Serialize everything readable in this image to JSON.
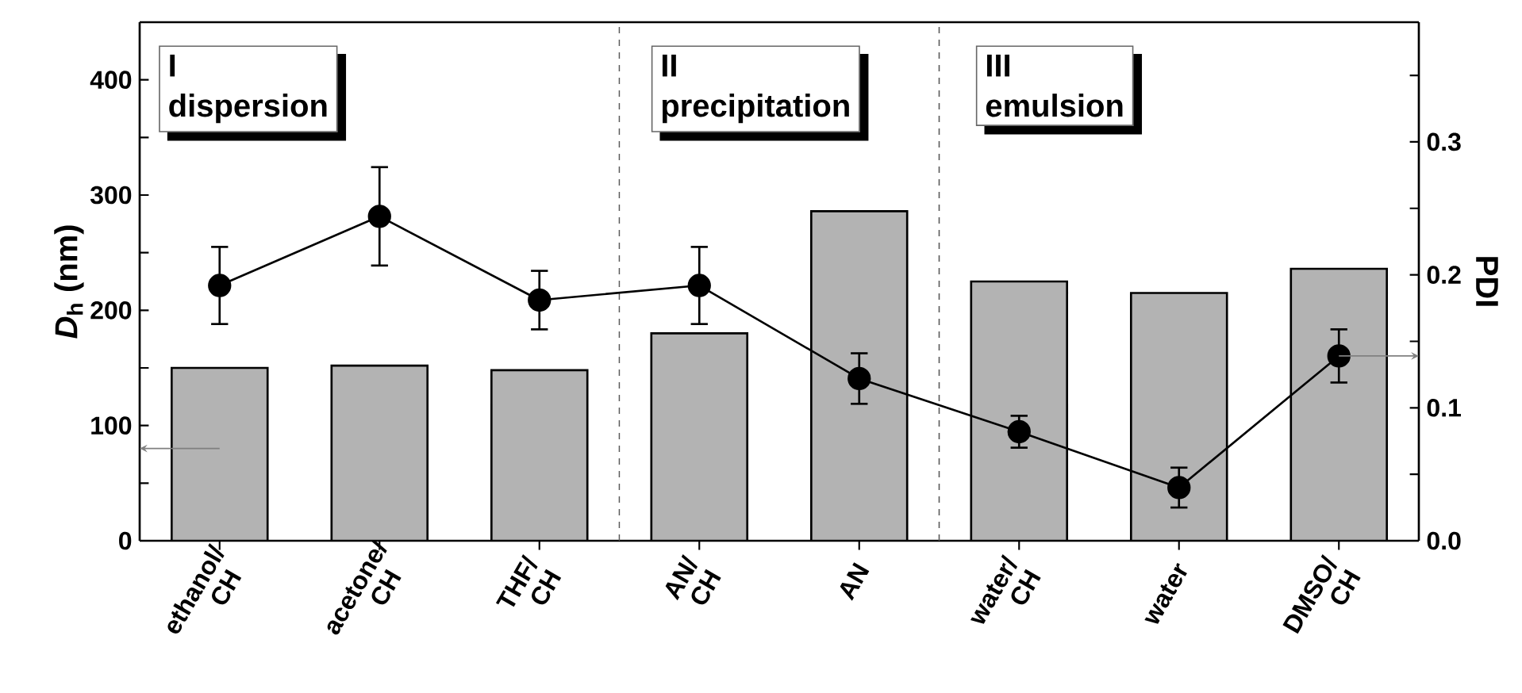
{
  "chart_data": {
    "type": "bar",
    "categories": [
      "ethanol/ CH",
      "acetone/ CH",
      "THF/ CH",
      "AN/ CH",
      "AN",
      "water/ CH",
      "water",
      "DMSO/ CH"
    ],
    "ylabel": "*D*$_{h}$ (nm)",
    "y2label": "PDI",
    "ylim": [
      0,
      450
    ],
    "yticks": [
      0,
      {
        "value": 50,
        "label": null
      },
      100,
      {
        "value": 150,
        "label": null
      },
      200,
      {
        "value": 250,
        "label": null
      },
      300,
      {
        "value": 350,
        "label": null
      },
      400
    ],
    "y2lim": [
      0,
      0.39
    ],
    "y2ticks": [
      {
        "value": 0,
        "label": "0.0"
      },
      {
        "value": 0.05,
        "label": null
      },
      0.1,
      {
        "value": 0.15,
        "label": null
      },
      0.2,
      {
        "value": 0.25,
        "label": null
      },
      0.3,
      {
        "value": 0.35,
        "label": null
      }
    ],
    "marker": "circle",
    "series": [
      {
        "color": "#b3b3b3",
        "values": [
          150,
          152,
          148,
          180,
          286,
          225,
          215,
          236
        ]
      },
      {
        "type": "line",
        "axis": "y2",
        "color": "#000000",
        "values": [
          0.192,
          0.244,
          0.181,
          0.192,
          0.122,
          0.082,
          0.04,
          0.139
        ],
        "errors": [
          0.029,
          0.037,
          0.022,
          0.029,
          0.019,
          0.012,
          0.015,
          0.02
        ]
      }
    ],
    "annotations": [
      "I",
      "dispersion",
      "II",
      "precipitation",
      "III",
      "emulsion"
    ]
  }
}
